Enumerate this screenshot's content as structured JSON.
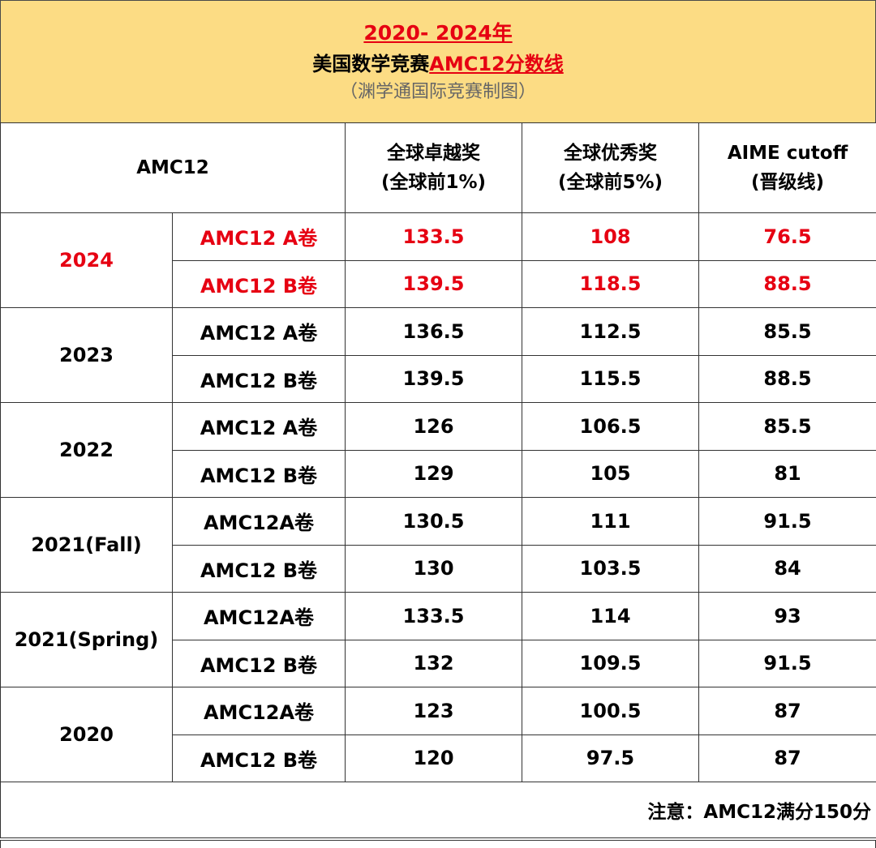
{
  "title": {
    "line1": "2020- 2024年",
    "line2_prefix": "美国数学竞赛",
    "line2_highlight": "AMC12分数线",
    "line3": "（渊学通国际竞赛制图）"
  },
  "header": {
    "col1": "AMC12",
    "col3_line1": "全球卓越奖",
    "col3_line2": "(全球前1%)",
    "col4_line1": "全球优秀奖",
    "col4_line2": "(全球前5%)",
    "col5_line1": "AIME cutoff",
    "col5_line2": "(晋级线)"
  },
  "rows": [
    {
      "year": "2024",
      "exam": "AMC12 A卷",
      "distinction": "133.5",
      "honor": "108",
      "aime": "76.5"
    },
    {
      "exam": "AMC12 B卷",
      "distinction": "139.5",
      "honor": "118.5",
      "aime": "88.5"
    },
    {
      "year": "2023",
      "exam": "AMC12 A卷",
      "distinction": "136.5",
      "honor": "112.5",
      "aime": "85.5"
    },
    {
      "exam": "AMC12 B卷",
      "distinction": "139.5",
      "honor": "115.5",
      "aime": "88.5"
    },
    {
      "year": "2022",
      "exam": "AMC12 A卷",
      "distinction": "126",
      "honor": "106.5",
      "aime": "85.5"
    },
    {
      "exam": "AMC12 B卷",
      "distinction": "129",
      "honor": "105",
      "aime": "81"
    },
    {
      "year": "2021(Fall)",
      "exam": "AMC12A卷",
      "distinction": "130.5",
      "honor": "111",
      "aime": "91.5"
    },
    {
      "exam": "AMC12 B卷",
      "distinction": "130",
      "honor": "103.5",
      "aime": "84"
    },
    {
      "year": "2021(Spring)",
      "exam": "AMC12A卷",
      "distinction": "133.5",
      "honor": "114",
      "aime": "93"
    },
    {
      "exam": "AMC12 B卷",
      "distinction": "132",
      "honor": "109.5",
      "aime": "91.5"
    },
    {
      "year": "2020",
      "exam": "AMC12A卷",
      "distinction": "123",
      "honor": "100.5",
      "aime": "87"
    },
    {
      "exam": "AMC12 B卷",
      "distinction": "120",
      "honor": "97.5",
      "aime": "87"
    }
  ],
  "note": "注意：AMC12满分150分",
  "colors": {
    "title_band": "#fcdc84",
    "highlight_red": "#e60012",
    "subtitle_grey": "#666666"
  }
}
